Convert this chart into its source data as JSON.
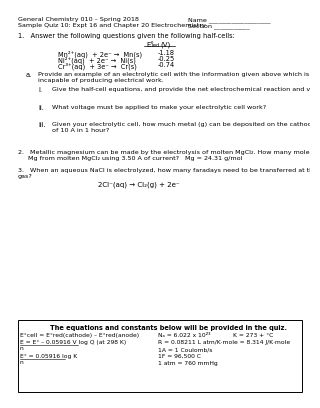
{
  "header_left_line1": "General Chemistry 010 – Spring 2018",
  "header_left_line2": "Sample Quiz 10: Expt 16 and Chapter 20 Electrochemistry",
  "header_right_line1": "Name ___________________",
  "header_right_line2": "Section ___________",
  "q1_intro": "1.   Answer the following questions given the following half-cells:",
  "table_header_main": "E°",
  "table_header_sub": "red",
  "table_header_end": "(V)",
  "row1_eq": "Mn²⁺(aq)  + 2e⁻ →  Mn(s)",
  "row1_val": "-1.18",
  "row2_eq": "Ni²⁺(aq)  + 2e⁻ →  Ni(s)",
  "row2_val": "-0.25",
  "row3_eq": "Cr³⁺(aq)  + 3e⁻ →  Cr(s)",
  "row3_val": "-0.74",
  "q1a_label": "a.",
  "q1a_text1": "Provide an example of an electrolytic cell with the information given above which is non-spontaneous,",
  "q1a_text2": "incapable of producing electrical work.",
  "q1i_label": "i.",
  "q1i_text": "Give the half-cell equations, and provide the net electrochemical reaction and voltage.",
  "q1ii_label": "ii.",
  "q1ii_text": "What voltage must be applied to make your electrolytic cell work?",
  "q1iii_label": "iii.",
  "q1iii_text1": "Given your electrolytic cell, how much metal (g) can be deposited on the cathode after the application",
  "q1iii_text2": "of 10 A in 1 hour?",
  "q2_line1": "2.   Metallic magnesium can be made by the electrolysis of molten MgCl₂. How many moles are needed to plate out 25.00 g",
  "q2_line2": "     Mg from molten MgCl₂ using 3.50 A of current?   Mg = 24.31 g/mol",
  "q3_line1": "3.   When an aqueous NaCl is electrolyzed, how many faradays need to be transferred at the anode to release 0.200 mol of Cl₂",
  "q3_line2": "gas?",
  "q3_eq": "2Cl⁻(aq) → Cl₂(g) + 2e⁻",
  "footer_title": "The equations and constants below will be provided in the quiz.",
  "f_l1a": "E°cell = E°red(cathode) – E°red(anode)",
  "f_l1b": "Nₐ = 6.022 x 10²³            K = 273 + °C",
  "f_l2a": "E = E° – 0.05916 V log Q (at 298 K)",
  "f_l2b": "R = 0.08211 L atm/K·mole = 8.314 J/K·mole",
  "f_l2a_denom": "n",
  "f_l3a": "E° = 0.05916 log K",
  "f_l3b": "1A = 1 Coulomb/s",
  "f_l3a_denom": "n",
  "f_l4b": "1F = 96,500 C",
  "f_l5b": "1 atm = 760 mmHg",
  "bg_color": "#ffffff",
  "text_color": "#000000"
}
